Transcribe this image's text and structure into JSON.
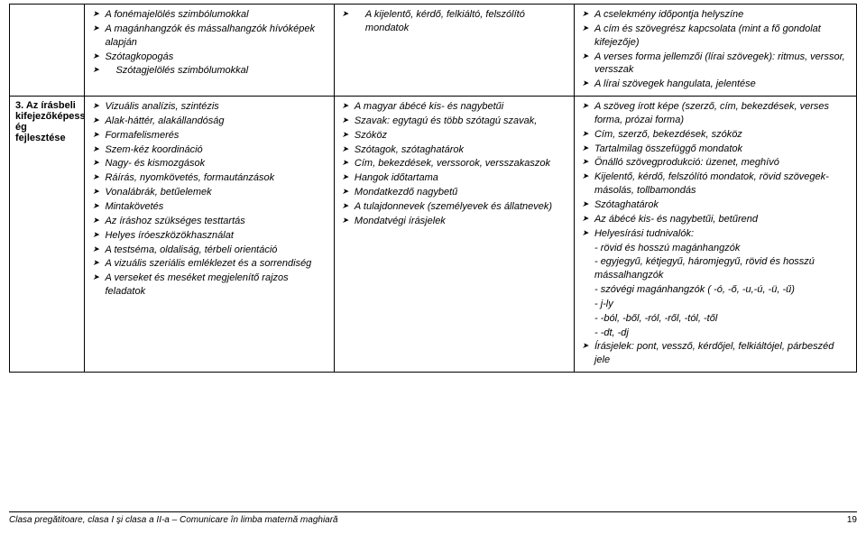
{
  "row1": {
    "label": "",
    "col2": [
      {
        "text": "A fonémajelölés szimbólumokkal",
        "it": true
      },
      {
        "text": "A magánhangzók és mássalhangzók hívóképek alapján",
        "it": true
      },
      {
        "text": "Szótagkopogás",
        "it": true
      },
      {
        "text": "Szótagjelölés szimbólumokkal",
        "it": true,
        "indent": true
      }
    ],
    "col3": [
      {
        "text": "A kijelentő, kérdő, felkiáltó, felszólító mondatok",
        "it": true,
        "indent": true
      }
    ],
    "col4": [
      {
        "text": "A cselekmény időpontja helyszíne",
        "it": true
      },
      {
        "text": "A cím és szövegrész kapcsolata (mint a fő gondolat kifejezője)",
        "it": true
      },
      {
        "text": "A verses forma jellemzői (lírai szövegek): ritmus, verssor, versszak",
        "it": true
      },
      {
        "text": "A lírai szövegek hangulata, jelentése",
        "it": true
      }
    ]
  },
  "row2": {
    "label": "3. Az írásbeli kifejezőképess ég fejlesztése",
    "col2": [
      {
        "text": "Vizuális analízis, szintézis",
        "it": true
      },
      {
        "text": "Alak-háttér, alakállandóság",
        "it": true
      },
      {
        "text": "Formafelismerés",
        "it": true
      },
      {
        "text": "Szem-kéz koordináció",
        "it": true
      },
      {
        "text": "Nagy- és kismozgások",
        "it": true
      },
      {
        "text": "Ráírás, nyomkövetés, formautánzások",
        "it": true
      },
      {
        "text": "Vonalábrák, betűelemek",
        "it": true
      },
      {
        "text": "Mintakövetés",
        "it": true
      },
      {
        "text": "Az íráshoz szükséges testtartás",
        "it": true
      },
      {
        "text": "Helyes íróeszközökhasználat",
        "it": true
      },
      {
        "text": "A testséma, oldaliság,  térbeli orientáció",
        "it": true
      },
      {
        "text": "A vizuális szeriális emléklezet és a sorrendiség",
        "it": true
      },
      {
        "text": "A verseket és meséket megjelenítő rajzos feladatok",
        "it": true
      }
    ],
    "col3": [
      {
        "text": "A magyar ábécé kis- és nagybetűi",
        "it": true
      },
      {
        "text": "Szavak: egytagú és több szótagú szavak,",
        "it": true
      },
      {
        "text": "Szóköz",
        "it": true
      },
      {
        "text": "Szótagok, szótaghatárok",
        "it": true
      },
      {
        "text": "Cím, bekezdések, verssorok, versszakaszok",
        "it": true
      },
      {
        "text": "Hangok időtartama",
        "it": true
      },
      {
        "text": "Mondatkezdő nagybetű",
        "it": true
      },
      {
        "text": "A tulajdonnevek (személyevek és állatnevek)",
        "it": true
      },
      {
        "text": "Mondatvégi írásjelek",
        "it": true
      }
    ],
    "col4": [
      {
        "text": "A szöveg írott képe (szerző, cím, bekezdések, verses forma, prózai forma)",
        "it": true
      },
      {
        "text": "Cím, szerző, bekezdések, szóköz",
        "it": true
      },
      {
        "text": "Tartalmilag összefüggő mondatok",
        "it": true
      },
      {
        "text": "Önálló szövegprodukció: üzenet, meghívó",
        "it": true
      },
      {
        "text": "Kijelentő, kérdő, felszólító mondatok, rövid szövegek- másolás, tollbamondás",
        "it": true
      },
      {
        "text": "Szótaghatárok",
        "it": true
      },
      {
        "text": "Az ábécé kis- és nagybetűi, betűrend",
        "it": true
      },
      {
        "text": "Helyesírási tudnivalók:",
        "it": true
      },
      {
        "text": "- rövid és hosszú magánhangzók",
        "it": true,
        "plain": true
      },
      {
        "text": "- egyjegyű, kétjegyű, háromjegyű, rövid és hosszú mássalhangzók",
        "it": true,
        "plain": true
      },
      {
        "text": "- szóvégi magánhangzók ( -ó, -ő, -u,-ú, -ü, -ű)",
        "it": true,
        "plain": true
      },
      {
        "text": "- j-ly",
        "it": true,
        "plain": true
      },
      {
        "text": "- -ból, -ből, -ról, -ről, -tól, -től",
        "it": true,
        "plain": true
      },
      {
        "text": "- -dt, -dj",
        "it": true,
        "plain": true
      },
      {
        "text": "Írásjelek: pont, vessző, kérdőjel, felkiáltójel, párbeszéd jele",
        "it": true
      }
    ]
  },
  "footer": {
    "left": "Clasa pregătitoare, clasa I şi clasa a II-a – Comunicare în limba maternă maghiară",
    "page": "19"
  }
}
